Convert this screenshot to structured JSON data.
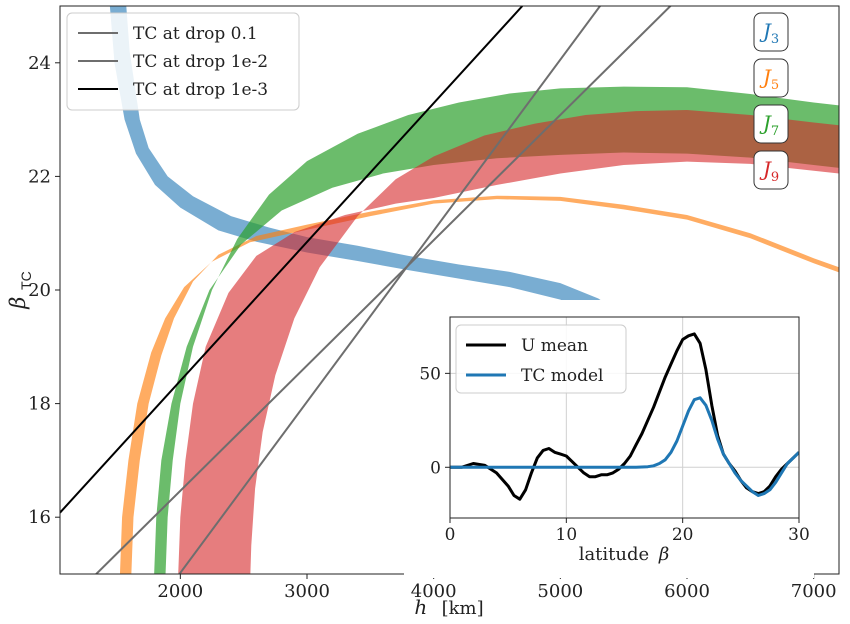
{
  "chart_data": [
    {
      "type": "line",
      "xlabel_var": "h",
      "xlabel_unit": "[km]",
      "ylabel_main": "β",
      "ylabel_sub": "TC",
      "xlim": [
        1050,
        7200
      ],
      "ylim": [
        15,
        25
      ],
      "xticks": [
        2000,
        3000,
        4000,
        5000,
        6000,
        7000
      ],
      "yticks": [
        16,
        18,
        20,
        22,
        24
      ],
      "grid": false,
      "legend_position": "top-left",
      "legend": [
        {
          "label": "TC at drop 0.1",
          "color": "#6e6e6e",
          "width": 2
        },
        {
          "label": "TC at drop 1e-2",
          "color": "#6e6e6e",
          "width": 2
        },
        {
          "label": "TC at drop 1e-3",
          "color": "#000000",
          "width": 2
        }
      ],
      "lines": [
        {
          "name": "TC at drop 0.1",
          "color": "#6e6e6e",
          "width": 2,
          "points": [
            [
              1200,
              14.7
            ],
            [
              5960,
              25.2
            ]
          ]
        },
        {
          "name": "TC at drop 1e-2",
          "color": "#6e6e6e",
          "width": 2,
          "points": [
            [
              1960,
              14.9
            ],
            [
              5380,
              25.2
            ]
          ]
        },
        {
          "name": "TC at drop 1e-3",
          "color": "#000000",
          "width": 2,
          "points": [
            [
              1050,
              16.08
            ],
            [
              4700,
              25.0
            ]
          ]
        }
      ],
      "bands": [
        {
          "name": "J3",
          "color": "#1f77b4",
          "opacity": 0.6,
          "upper": [
            [
              1570,
              25.1
            ],
            [
              1600,
              24.2
            ],
            [
              1680,
              23.0
            ],
            [
              1750,
              22.5
            ],
            [
              1900,
              22.0
            ],
            [
              2100,
              21.65
            ],
            [
              2400,
              21.3
            ],
            [
              2700,
              21.1
            ],
            [
              3000,
              20.93
            ],
            [
              3400,
              20.78
            ],
            [
              3800,
              20.6
            ],
            [
              4200,
              20.45
            ],
            [
              4600,
              20.32
            ],
            [
              5000,
              20.12
            ],
            [
              5300,
              19.85
            ],
            [
              5600,
              19.4
            ],
            [
              5900,
              18.7
            ],
            [
              6200,
              17.6
            ],
            [
              6450,
              15.8
            ],
            [
              6580,
              14.8
            ]
          ],
          "lower": [
            [
              1440,
              25.1
            ],
            [
              1480,
              24.0
            ],
            [
              1560,
              23.0
            ],
            [
              1650,
              22.4
            ],
            [
              1800,
              21.85
            ],
            [
              2000,
              21.45
            ],
            [
              2300,
              21.05
            ],
            [
              2600,
              20.85
            ],
            [
              3000,
              20.66
            ],
            [
              3400,
              20.51
            ],
            [
              3800,
              20.35
            ],
            [
              4200,
              20.2
            ],
            [
              4600,
              20.05
            ],
            [
              5000,
              19.83
            ],
            [
              5300,
              19.52
            ],
            [
              5600,
              19.05
            ],
            [
              5900,
              18.35
            ],
            [
              6200,
              17.2
            ],
            [
              6420,
              15.5
            ],
            [
              6510,
              14.8
            ]
          ]
        },
        {
          "name": "J5",
          "color": "#ff7f0e",
          "opacity": 0.65,
          "upper": [
            [
              1610,
              14.8
            ],
            [
              1630,
              16.0
            ],
            [
              1680,
              17.0
            ],
            [
              1750,
              18.0
            ],
            [
              1850,
              18.85
            ],
            [
              1950,
              19.5
            ],
            [
              2100,
              20.15
            ],
            [
              2300,
              20.62
            ],
            [
              2600,
              20.95
            ],
            [
              3000,
              21.15
            ],
            [
              3500,
              21.38
            ],
            [
              4000,
              21.58
            ],
            [
              4500,
              21.66
            ],
            [
              5000,
              21.64
            ],
            [
              5500,
              21.5
            ],
            [
              6000,
              21.32
            ],
            [
              6500,
              21.0
            ],
            [
              7000,
              20.56
            ],
            [
              7200,
              20.4
            ]
          ],
          "lower": [
            [
              1520,
              14.8
            ],
            [
              1540,
              16.0
            ],
            [
              1590,
              17.0
            ],
            [
              1660,
              18.0
            ],
            [
              1770,
              18.9
            ],
            [
              1880,
              19.5
            ],
            [
              2030,
              20.05
            ],
            [
              2250,
              20.5
            ],
            [
              2550,
              20.84
            ],
            [
              3000,
              21.06
            ],
            [
              3500,
              21.3
            ],
            [
              4000,
              21.52
            ],
            [
              4500,
              21.6
            ],
            [
              5000,
              21.57
            ],
            [
              5500,
              21.42
            ],
            [
              6000,
              21.24
            ],
            [
              6500,
              20.91
            ],
            [
              7000,
              20.47
            ],
            [
              7200,
              20.31
            ]
          ]
        },
        {
          "name": "J7",
          "color": "#2ca02c",
          "opacity": 0.7,
          "upper": [
            [
              1880,
              14.8
            ],
            [
              1900,
              16.0
            ],
            [
              1940,
              17.0
            ],
            [
              2000,
              18.0
            ],
            [
              2100,
              19.0
            ],
            [
              2250,
              20.0
            ],
            [
              2450,
              20.9
            ],
            [
              2700,
              21.68
            ],
            [
              3000,
              22.27
            ],
            [
              3400,
              22.75
            ],
            [
              3800,
              23.08
            ],
            [
              4200,
              23.3
            ],
            [
              4600,
              23.46
            ],
            [
              5000,
              23.55
            ],
            [
              5500,
              23.58
            ],
            [
              6000,
              23.57
            ],
            [
              6500,
              23.45
            ],
            [
              7000,
              23.3
            ],
            [
              7200,
              23.25
            ]
          ],
          "lower": [
            [
              1790,
              14.8
            ],
            [
              1810,
              16.0
            ],
            [
              1850,
              17.0
            ],
            [
              1930,
              18.0
            ],
            [
              2050,
              19.0
            ],
            [
              2230,
              20.0
            ],
            [
              2480,
              20.8
            ],
            [
              2800,
              21.4
            ],
            [
              3200,
              21.8
            ],
            [
              3600,
              22.05
            ],
            [
              4000,
              22.2
            ],
            [
              4500,
              22.32
            ],
            [
              5000,
              22.38
            ],
            [
              5500,
              22.42
            ],
            [
              6000,
              22.4
            ],
            [
              6500,
              22.33
            ],
            [
              7000,
              22.2
            ],
            [
              7200,
              22.15
            ]
          ]
        },
        {
          "name": "J9",
          "color": "#d62728",
          "opacity": 0.6,
          "upper": [
            [
              2550,
              14.8
            ],
            [
              2560,
              15.5
            ],
            [
              2590,
              16.5
            ],
            [
              2650,
              17.5
            ],
            [
              2750,
              18.5
            ],
            [
              2900,
              19.5
            ],
            [
              3100,
              20.4
            ],
            [
              3400,
              21.3
            ],
            [
              3700,
              21.95
            ],
            [
              4000,
              22.35
            ],
            [
              4400,
              22.72
            ],
            [
              4800,
              22.93
            ],
            [
              5200,
              23.08
            ],
            [
              5600,
              23.15
            ],
            [
              6000,
              23.17
            ],
            [
              6500,
              23.08
            ],
            [
              7000,
              22.95
            ],
            [
              7200,
              22.9
            ]
          ],
          "lower": [
            [
              1980,
              14.8
            ],
            [
              2000,
              16.0
            ],
            [
              2040,
              17.0
            ],
            [
              2100,
              18.0
            ],
            [
              2200,
              19.0
            ],
            [
              2380,
              19.95
            ],
            [
              2600,
              20.6
            ],
            [
              2900,
              21.02
            ],
            [
              3300,
              21.32
            ],
            [
              3700,
              21.52
            ],
            [
              4000,
              21.62
            ],
            [
              4500,
              21.85
            ],
            [
              5000,
              22.05
            ],
            [
              5500,
              22.2
            ],
            [
              6000,
              22.26
            ],
            [
              6500,
              22.22
            ],
            [
              7000,
              22.1
            ],
            [
              7200,
              22.05
            ]
          ]
        }
      ],
      "band_labels": [
        {
          "letter": "J",
          "sub": "3",
          "color": "#1f77b4"
        },
        {
          "letter": "J",
          "sub": "5",
          "color": "#ff7f0e"
        },
        {
          "letter": "J",
          "sub": "7",
          "color": "#2ca02c"
        },
        {
          "letter": "J",
          "sub": "9",
          "color": "#d62728"
        }
      ]
    },
    {
      "type": "line",
      "xlabel_text": "latitude",
      "xlabel_var": "β",
      "ylabel": "",
      "xlim": [
        0,
        30
      ],
      "ylim": [
        -27,
        80
      ],
      "xticks": [
        0,
        10,
        20,
        30
      ],
      "yticks": [
        0,
        50
      ],
      "grid": true,
      "legend_position": "top-left",
      "series": [
        {
          "name": "U mean",
          "color": "#000000",
          "width": 3,
          "x": [
            0,
            1,
            2,
            3,
            4,
            5,
            5.5,
            6,
            6.5,
            7,
            7.5,
            8,
            8.5,
            9,
            9.5,
            10,
            10.5,
            11,
            11.5,
            12,
            12.5,
            13,
            13.5,
            14,
            14.5,
            15,
            15.5,
            16,
            16.5,
            17,
            17.5,
            18,
            18.5,
            19,
            19.5,
            20,
            20.5,
            21,
            21.5,
            22,
            22.5,
            23,
            23.5,
            24,
            24.5,
            25,
            25.5,
            26,
            26.5,
            27,
            27.5,
            28,
            28.5,
            29,
            29.5,
            30
          ],
          "y": [
            0,
            0,
            2,
            1,
            -3,
            -10,
            -15,
            -17,
            -12,
            -3,
            5,
            9,
            10,
            8,
            7,
            6,
            3,
            0,
            -3,
            -5,
            -5,
            -4,
            -4,
            -3,
            -1,
            2,
            6,
            12,
            18,
            25,
            32,
            40,
            48,
            55,
            62,
            68,
            70,
            71,
            66,
            52,
            33,
            17,
            7,
            2,
            -2,
            -7,
            -11,
            -13,
            -14,
            -13,
            -10,
            -5,
            -1,
            2,
            5,
            8
          ]
        },
        {
          "name": "TC model",
          "color": "#1f77b4",
          "width": 3,
          "x": [
            0,
            5,
            10,
            15,
            16,
            17,
            17.5,
            18,
            18.5,
            19,
            19.5,
            20,
            20.5,
            21,
            21.5,
            22,
            22.5,
            23,
            23.5,
            24,
            24.5,
            25,
            25.5,
            26,
            26.5,
            27,
            27.5,
            28,
            28.5,
            29,
            29.5,
            30
          ],
          "y": [
            0,
            0,
            0,
            0,
            0,
            0.3,
            0.8,
            2,
            4,
            8,
            14,
            22,
            30,
            36,
            37,
            33,
            25,
            15,
            7,
            2,
            -3,
            -7,
            -10,
            -13,
            -15,
            -14,
            -12,
            -8,
            -3,
            2,
            5,
            8
          ]
        }
      ]
    }
  ]
}
